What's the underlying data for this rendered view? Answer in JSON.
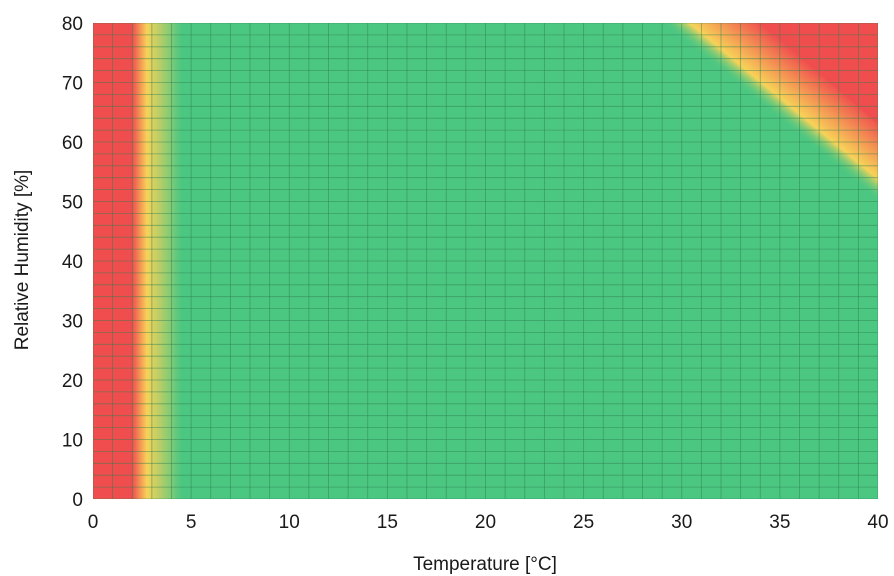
{
  "chart_data": {
    "type": "heatmap",
    "title": "",
    "xlabel": "Temperature [°C]",
    "ylabel": "Relative Humidity [%]",
    "xlim": [
      0,
      40
    ],
    "ylim": [
      0,
      80
    ],
    "x_ticks": [
      "0",
      "5",
      "10",
      "15",
      "20",
      "25",
      "30",
      "35",
      "40"
    ],
    "y_ticks": [
      "0",
      "10",
      "20",
      "30",
      "40",
      "50",
      "60",
      "70",
      "80"
    ],
    "grid": true,
    "grid_step_x": 1,
    "grid_step_y": 2,
    "colors": {
      "good": "#4cc782",
      "warning": "#f7d258",
      "bad": "#f04e4e",
      "grid": "#2e7d4f"
    },
    "zones": {
      "low_temperature": {
        "bad_below_temperature": 2,
        "transition_end_temperature": 4.5
      },
      "high_temperature_humidity": {
        "boundary_start": {
          "temperature": 29,
          "humidity": 80
        },
        "boundary_end": {
          "temperature": 40,
          "humidity": 50
        },
        "bad_start": {
          "temperature": 34,
          "humidity": 80
        },
        "bad_end": {
          "temperature": 40,
          "humidity": 63
        }
      }
    }
  }
}
